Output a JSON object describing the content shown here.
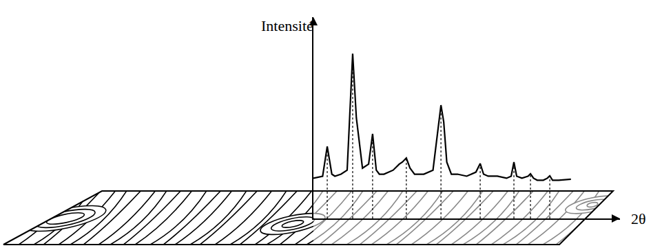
{
  "chart_data": {
    "type": "line",
    "x_label": "2θ",
    "y_label": "Intensité",
    "x": [
      0,
      3,
      4.5,
      6,
      7,
      9,
      11,
      12,
      12.8,
      14,
      16,
      18,
      19.3,
      20.5,
      21.5,
      23,
      26,
      28,
      29,
      30.3,
      31.5,
      33,
      36,
      39,
      40.3,
      41.6,
      42.5,
      43.5,
      45,
      47,
      50,
      53,
      54.4,
      55.5,
      57,
      60,
      63,
      64.5,
      65.4,
      66.3,
      68,
      70,
      70.8,
      71.8,
      73,
      75,
      76.3,
      77.1,
      78,
      80,
      84
    ],
    "values": [
      20,
      21,
      35.8,
      22,
      21,
      22,
      24,
      55,
      81.9,
      50,
      25,
      27,
      42,
      24,
      22,
      22,
      24,
      27,
      28,
      30,
      25,
      22,
      22,
      24,
      40,
      56.3,
      48,
      28,
      22,
      22,
      21,
      23,
      27.3,
      22,
      21,
      21,
      20,
      21,
      28,
      21,
      20,
      21,
      22.2,
      20,
      19,
      19,
      20,
      21.2,
      19,
      19,
      19.5
    ],
    "xlim": [
      0,
      100
    ],
    "ylim": [
      0,
      100
    ],
    "tick_labels": false,
    "grid": false,
    "color": "#000000"
  }
}
